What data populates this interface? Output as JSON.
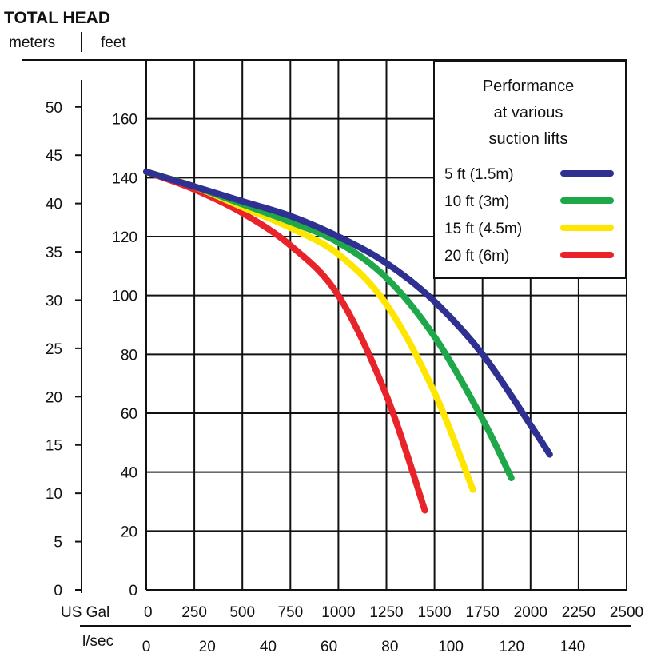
{
  "chart_data": {
    "type": "line",
    "title": "TOTAL HEAD",
    "y_units": {
      "meters": "meters",
      "feet": "feet"
    },
    "x_units": {
      "gal": "US Gal",
      "lsec": "l/sec"
    },
    "grid": true,
    "legend_placement": "top-right",
    "legend_title": [
      "Performance",
      "at various",
      "suction lifts"
    ],
    "y_feet_range": [
      0,
      180
    ],
    "y_meters_ticks": [
      "0",
      "5",
      "10",
      "15",
      "20",
      "25",
      "30",
      "35",
      "40",
      "45",
      "50"
    ],
    "y_feet_ticks": [
      "0",
      "20",
      "40",
      "60",
      "80",
      "100",
      "120",
      "140",
      "160"
    ],
    "x_gal_range": [
      0,
      2500
    ],
    "x_gal_ticks": [
      "0",
      "250",
      "500",
      "750",
      "1000",
      "1250",
      "1500",
      "1750",
      "2000",
      "2250",
      "2500"
    ],
    "x_lsec_ticks": [
      "0",
      "20",
      "40",
      "60",
      "80",
      "100",
      "120",
      "140"
    ],
    "series": [
      {
        "name": "5 ft (1.5m)",
        "color": "#2e3192",
        "x": [
          0,
          250,
          500,
          750,
          1000,
          1250,
          1500,
          1750,
          2000,
          2100
        ],
        "y": [
          142,
          137,
          132,
          127,
          120,
          111,
          98,
          80,
          56,
          46
        ]
      },
      {
        "name": "10 ft (3m)",
        "color": "#1fa84a",
        "x": [
          0,
          250,
          500,
          750,
          1000,
          1250,
          1500,
          1750,
          1900
        ],
        "y": [
          142,
          137,
          131,
          125,
          118,
          106,
          86,
          58,
          38
        ]
      },
      {
        "name": "15 ft (4.5m)",
        "color": "#ffe600",
        "x": [
          0,
          250,
          500,
          750,
          1000,
          1250,
          1500,
          1700
        ],
        "y": [
          142,
          137,
          130,
          123,
          114,
          97,
          67,
          34
        ]
      },
      {
        "name": "20 ft (6m)",
        "color": "#e8232a",
        "x": [
          0,
          250,
          500,
          750,
          1000,
          1250,
          1450
        ],
        "y": [
          142,
          136,
          128,
          117,
          100,
          66,
          27
        ]
      }
    ]
  }
}
